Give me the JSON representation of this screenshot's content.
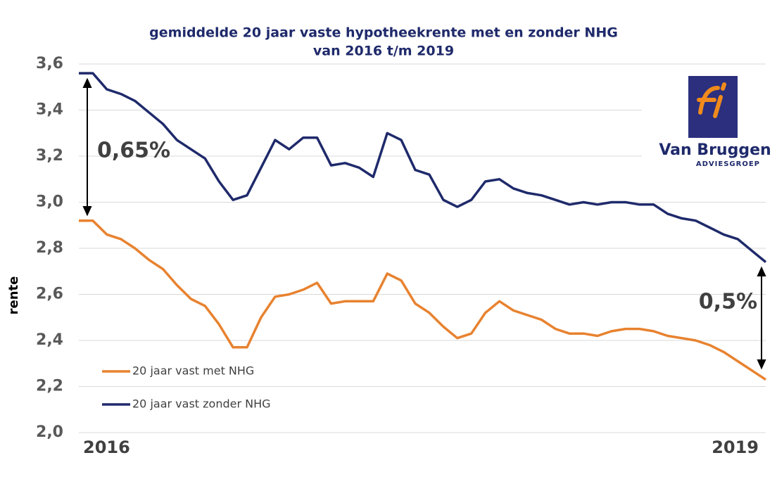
{
  "chart_data": {
    "type": "line",
    "title": "gemiddelde 20 jaar vaste hypotheekrente met en zonder NHG",
    "subtitle": "van 2016 t/m 2019",
    "y_label": "rente",
    "categories": [
      "2016",
      null,
      null,
      null,
      null,
      null,
      null,
      null,
      null,
      null,
      null,
      null,
      null,
      null,
      null,
      null,
      null,
      null,
      null,
      null,
      null,
      null,
      null,
      null,
      null,
      null,
      null,
      null,
      null,
      null,
      null,
      null,
      null,
      null,
      null,
      null,
      null,
      null,
      null,
      null,
      null,
      null,
      null,
      null,
      null,
      null,
      null,
      null,
      null,
      "2019"
    ],
    "series": [
      {
        "name": "20 jaar vast met NHG",
        "color": "#e8822f",
        "values": [
          2.92,
          2.92,
          2.86,
          2.84,
          2.8,
          2.75,
          2.71,
          2.64,
          2.58,
          2.55,
          2.47,
          2.37,
          2.37,
          2.5,
          2.59,
          2.6,
          2.62,
          2.65,
          2.56,
          2.57,
          2.57,
          2.57,
          2.69,
          2.66,
          2.56,
          2.52,
          2.46,
          2.41,
          2.43,
          2.52,
          2.57,
          2.53,
          2.51,
          2.49,
          2.45,
          2.43,
          2.43,
          2.42,
          2.44,
          2.45,
          2.45,
          2.44,
          2.42,
          2.41,
          2.4,
          2.38,
          2.35,
          2.31,
          2.27,
          2.23
        ]
      },
      {
        "name": "20 jaar vast zonder NHG",
        "color": "#1f2a6b",
        "values": [
          3.56,
          3.56,
          3.49,
          3.47,
          3.44,
          3.39,
          3.34,
          3.27,
          3.23,
          3.19,
          3.09,
          3.01,
          3.03,
          3.15,
          3.27,
          3.23,
          3.28,
          3.28,
          3.16,
          3.17,
          3.15,
          3.11,
          3.3,
          3.27,
          3.14,
          3.12,
          3.01,
          2.98,
          3.01,
          3.09,
          3.1,
          3.06,
          3.04,
          3.03,
          3.01,
          2.99,
          3.0,
          2.99,
          3.0,
          3.0,
          2.99,
          2.99,
          2.95,
          2.93,
          2.92,
          2.89,
          2.86,
          2.84,
          2.79,
          2.74
        ]
      }
    ],
    "ylim": [
      2.0,
      3.6
    ],
    "yticks": [
      {
        "value": 2.0,
        "label": "2,0"
      },
      {
        "value": 2.2,
        "label": "2,2"
      },
      {
        "value": 2.4,
        "label": "2,4"
      },
      {
        "value": 2.6,
        "label": "2,6"
      },
      {
        "value": 2.8,
        "label": "2,8"
      },
      {
        "value": 3.0,
        "label": "3,0"
      },
      {
        "value": 3.2,
        "label": "3,2"
      },
      {
        "value": 3.4,
        "label": "3,4"
      },
      {
        "value": 3.6,
        "label": "3,6"
      }
    ],
    "grid": true,
    "legend": "lower left",
    "annotations": [
      "0,65%",
      "0,5%"
    ],
    "logo": {
      "name": "Van Bruggen",
      "tagline": "ADVIESGROEP"
    }
  }
}
